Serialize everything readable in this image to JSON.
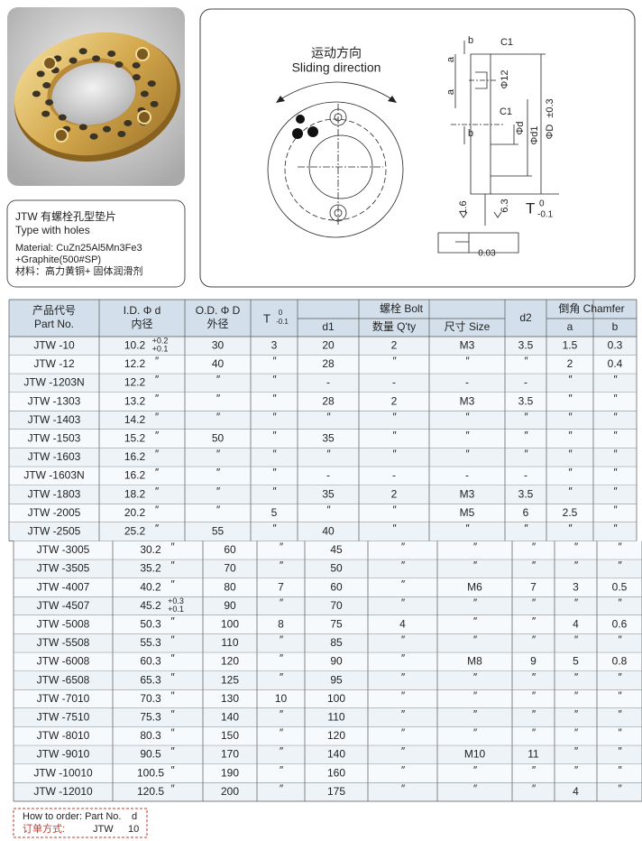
{
  "product": {
    "title": "JTW 有螺栓孔型垫片",
    "subtitle": "Type with holes",
    "material": [
      "Material: CuZn25Al5Mn3Fe3",
      "+Graphite(500#SP)",
      "材料：高力黄铜+ 固体润滑剂"
    ]
  },
  "drawing": {
    "direction_cn": "运动方向",
    "direction_en": "Sliding direction",
    "dims": [
      "b",
      "C1",
      "a",
      "a",
      "Φ12",
      "C1",
      "Φd",
      "Φd1",
      "ΦD",
      "±0.3",
      "b",
      "1.6",
      "6.3",
      "0.03"
    ],
    "t": {
      "symbol": "T",
      "upper": "0",
      "lower": "-0.1"
    }
  },
  "table": {
    "header": {
      "part": [
        "产品代号",
        "Part No."
      ],
      "id": [
        "I.D.  Φ d",
        "内径"
      ],
      "od": [
        "O.D.  Φ D",
        "外径"
      ],
      "t": {
        "symbol": "T",
        "upper": "0",
        "lower": "-0.1"
      },
      "bolt": "螺栓  Bolt",
      "d1": "d1",
      "qty": "数量 Q'ty",
      "size": "尺寸 Size",
      "d2": "d2",
      "chamfer": "倒角 Chamfer",
      "a": "a",
      "b": "b"
    },
    "rows": [
      [
        "JTW -10",
        "10.2",
        {
          "upper": "+0.2",
          "lower": "+0.1"
        },
        "30",
        "3",
        "20",
        "2",
        "M3",
        "3.5",
        "1.5",
        "0.3"
      ],
      [
        "JTW -12",
        "12.2",
        "″",
        "40",
        "″",
        "28",
        "″",
        "″",
        "″",
        "2",
        "0.4"
      ],
      [
        "JTW -1203N",
        "12.2",
        "″",
        "″",
        "″",
        "-",
        "-",
        "-",
        "-",
        "″",
        "″"
      ],
      [
        "JTW -1303",
        "13.2",
        "″",
        "″",
        "″",
        "28",
        "2",
        "M3",
        "3.5",
        "″",
        "″"
      ],
      [
        "JTW -1403",
        "14.2",
        "″",
        "″",
        "″",
        "″",
        "″",
        "″",
        "″",
        "″",
        "″"
      ],
      [
        "JTW -1503",
        "15.2",
        "″",
        "50",
        "″",
        "35",
        "″",
        "″",
        "″",
        "″",
        "″"
      ],
      [
        "JTW -1603",
        "16.2",
        "″",
        "″",
        "″",
        "″",
        "″",
        "″",
        "″",
        "″",
        "″"
      ],
      [
        "JTW -1603N",
        "16.2",
        "″",
        "″",
        "″",
        "-",
        "-",
        "-",
        "-",
        "″",
        "″"
      ],
      [
        "JTW -1803",
        "18.2",
        "″",
        "″",
        "″",
        "35",
        "2",
        "M3",
        "3.5",
        "″",
        "″"
      ],
      [
        "JTW -2005",
        "20.2",
        "″",
        "″",
        "5",
        "″",
        "″",
        "M5",
        "6",
        "2.5",
        "″"
      ],
      [
        "JTW -2505",
        "25.2",
        "″",
        "55",
        "″",
        "40",
        "″",
        "″",
        "″",
        "″",
        "″"
      ],
      [
        "JTW -3005",
        "30.2",
        "″",
        "60",
        "″",
        "45",
        "″",
        "″",
        "″",
        "″",
        "″"
      ],
      [
        "JTW -3505",
        "35.2",
        "″",
        "70",
        "″",
        "50",
        "″",
        "″",
        "″",
        "″",
        "″"
      ],
      [
        "JTW -4007",
        "40.2",
        "″",
        "80",
        "7",
        "60",
        "″",
        "M6",
        "7",
        "3",
        "0.5"
      ],
      [
        "JTW -4507",
        "45.2",
        {
          "upper": "+0.3",
          "lower": "+0.1"
        },
        "90",
        "″",
        "70",
        "″",
        "″",
        "″",
        "″",
        "″"
      ],
      [
        "JTW -5008",
        "50.3",
        "″",
        "100",
        "8",
        "75",
        "4",
        "″",
        "″",
        "4",
        "0.6"
      ],
      [
        "JTW -5508",
        "55.3",
        "″",
        "110",
        "″",
        "85",
        "″",
        "″",
        "″",
        "″",
        "″"
      ],
      [
        "JTW -6008",
        "60.3",
        "″",
        "120",
        "″",
        "90",
        "″",
        "M8",
        "9",
        "5",
        "0.8"
      ],
      [
        "JTW -6508",
        "65.3",
        "″",
        "125",
        "″",
        "95",
        "″",
        "″",
        "″",
        "″",
        "″"
      ],
      [
        "JTW -7010",
        "70.3",
        "″",
        "130",
        "10",
        "100",
        "″",
        "″",
        "″",
        "″",
        "″"
      ],
      [
        "JTW -7510",
        "75.3",
        "″",
        "140",
        "″",
        "110",
        "″",
        "″",
        "″",
        "″",
        "″"
      ],
      [
        "JTW -8010",
        "80.3",
        "″",
        "150",
        "″",
        "120",
        "″",
        "″",
        "″",
        "″",
        "″"
      ],
      [
        "JTW -9010",
        "90.5",
        "″",
        "170",
        "″",
        "140",
        "″",
        "M10",
        "11",
        "″",
        "″"
      ],
      [
        "JTW -10010",
        "100.5",
        "″",
        "190",
        "″",
        "160",
        "″",
        "″",
        "″",
        "″",
        "″"
      ],
      [
        "JTW -12010",
        "120.5",
        "″",
        "200",
        "″",
        "175",
        "″",
        "″",
        "″",
        "4",
        "″"
      ]
    ]
  },
  "order": {
    "label_en": "How to order: Part No.",
    "d": "d",
    "label_cn": "订单方式:",
    "part": "JTW",
    "value": "10"
  }
}
